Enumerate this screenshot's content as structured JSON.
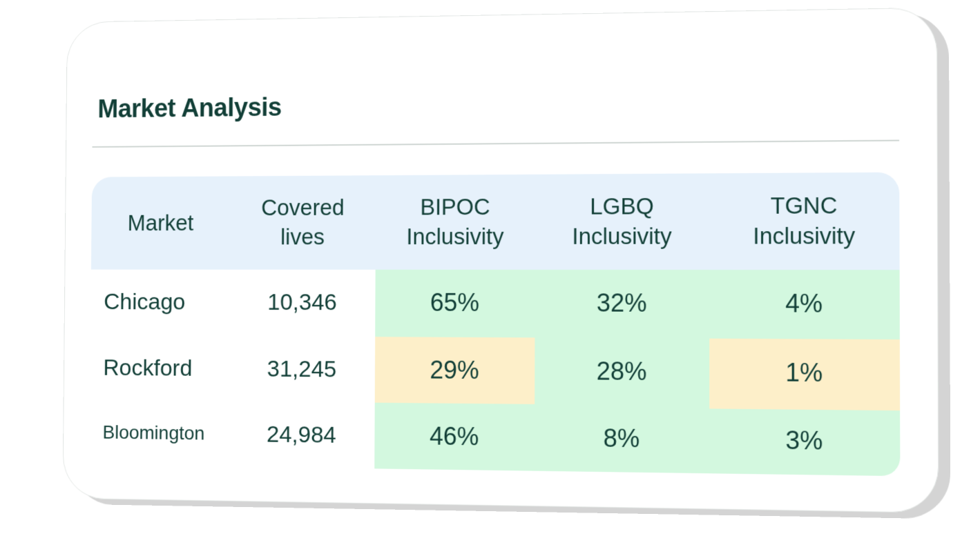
{
  "card": {
    "title": "Market Analysis"
  },
  "table": {
    "headers": [
      {
        "line1": "Market",
        "line2": ""
      },
      {
        "line1": "Covered",
        "line2": "lives"
      },
      {
        "line1": "BIPOC",
        "line2": "Inclusivity"
      },
      {
        "line1": "LGBQ",
        "line2": "Inclusivity"
      },
      {
        "line1": "TGNC",
        "line2": "Inclusivity"
      }
    ],
    "rows": [
      {
        "market": "Chicago",
        "covered_lives": "10,346",
        "bipoc": "65%",
        "lgbq": "32%",
        "tgnc": "4%"
      },
      {
        "market": "Rockford",
        "covered_lives": "31,245",
        "bipoc": "29%",
        "lgbq": "28%",
        "tgnc": "1%"
      },
      {
        "market": "Bloomington",
        "covered_lives": "24,984",
        "bipoc": "46%",
        "lgbq": "8%",
        "tgnc": "3%"
      }
    ]
  },
  "colors": {
    "header_bg": "#e6f1fb",
    "good_bg": "#d3f8df",
    "warning_bg": "#fdefc9",
    "text": "#123f37"
  }
}
